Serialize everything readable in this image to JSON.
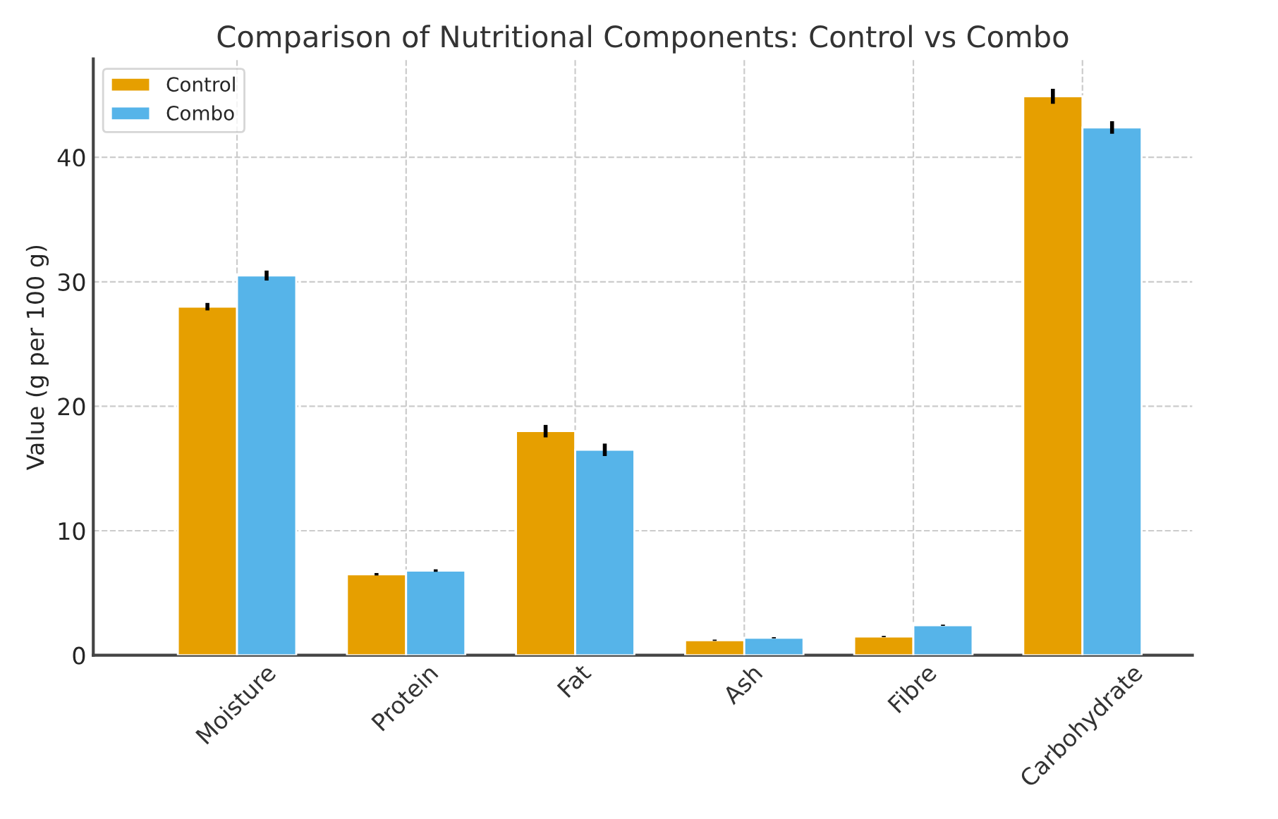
{
  "chart_data": {
    "type": "bar",
    "title": "Comparison of Nutritional Components: Control vs Combo",
    "ylabel": "Value (g per 100 g)",
    "categories": [
      "Moisture",
      "Protein",
      "Fat",
      "Ash",
      "Fibre",
      "Carbohydrate"
    ],
    "series": [
      {
        "name": "Control",
        "color": "#e69f00",
        "values": [
          28.0,
          6.5,
          18.0,
          1.2,
          1.5,
          44.9
        ],
        "errors": [
          0.3,
          0.1,
          0.5,
          0.05,
          0.05,
          0.6
        ]
      },
      {
        "name": "Combo",
        "color": "#56b4e9",
        "values": [
          30.5,
          6.8,
          16.5,
          1.4,
          2.4,
          42.4
        ],
        "errors": [
          0.4,
          0.1,
          0.5,
          0.05,
          0.05,
          0.5
        ]
      }
    ],
    "ylim": [
      0,
      47.9
    ],
    "yticks": [
      0,
      10,
      20,
      30,
      40
    ],
    "grid": true,
    "legend": "top left"
  }
}
